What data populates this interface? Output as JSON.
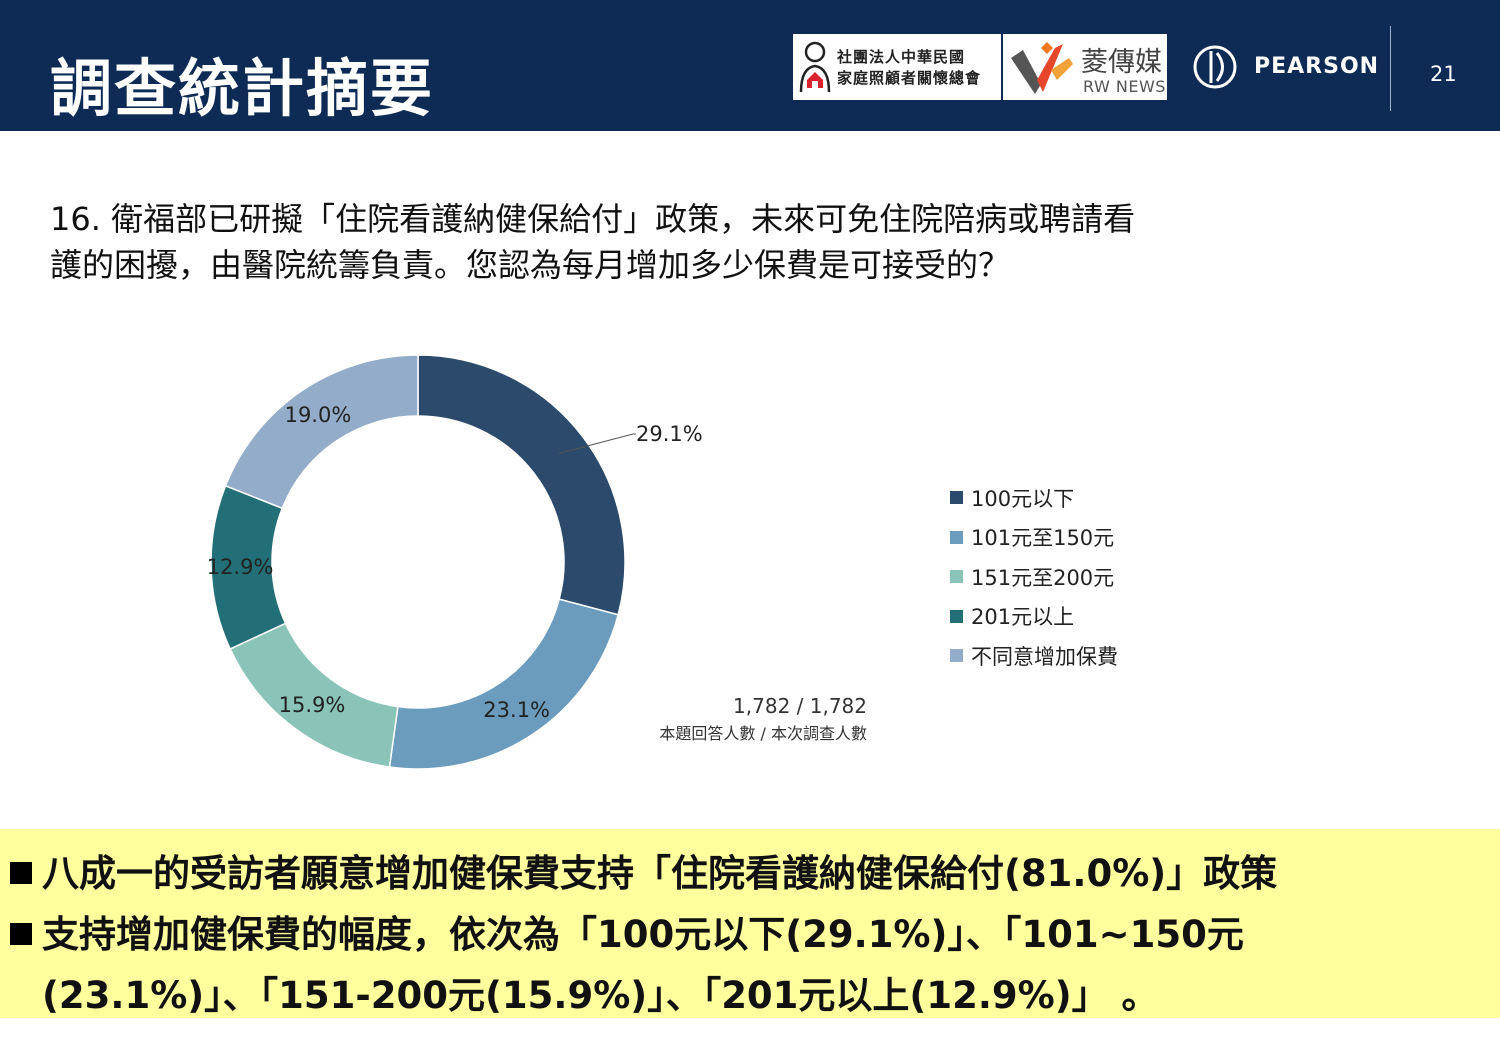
{
  "header": {
    "title": "調查統計摘要",
    "page_number": "21",
    "logos": {
      "association": {
        "line1": "社團法人中華民國",
        "line2": "家庭照顧者關懷總會"
      },
      "rwnews": {
        "cn": "菱傳媒",
        "en": "RW NEWS"
      },
      "pearson": "PEARSON"
    }
  },
  "question": {
    "line1": "16. 衛福部已研擬「住院看護納健保給付」政策，未來可免住院陪病或聘請看",
    "line2": "護的困擾，由醫院統籌負責。您認為每月增加多少保費是可接受的？"
  },
  "chart_data": {
    "type": "pie",
    "donut": true,
    "categories": [
      "100元以下",
      "101元至150元",
      "151元至200元",
      "201元以上",
      "不同意增加保費"
    ],
    "values": [
      29.1,
      23.1,
      15.9,
      12.9,
      19.0
    ],
    "data_labels": [
      "29.1%",
      "23.1%",
      "15.9%",
      "12.9%",
      "19.0%"
    ],
    "colors": [
      "#2c4a6b",
      "#6b9cbd",
      "#8ac3b7",
      "#236f77",
      "#92acc9"
    ],
    "legend_position": "right"
  },
  "respondents": {
    "value": "1,782 / 1,782",
    "label": "本題回答人數 / 本次調查人數"
  },
  "summary": {
    "line1": "八成一的受訪者願意增加健保費支持「住院看護納健保給付(81.0%)」政策",
    "line2": "支持增加健保費的幅度，依次為「100元以下(29.1%)」、「101~150元",
    "line3": "(23.1%)」、「151-200元(15.9%)」、「201元以上(12.9%)」 。"
  }
}
